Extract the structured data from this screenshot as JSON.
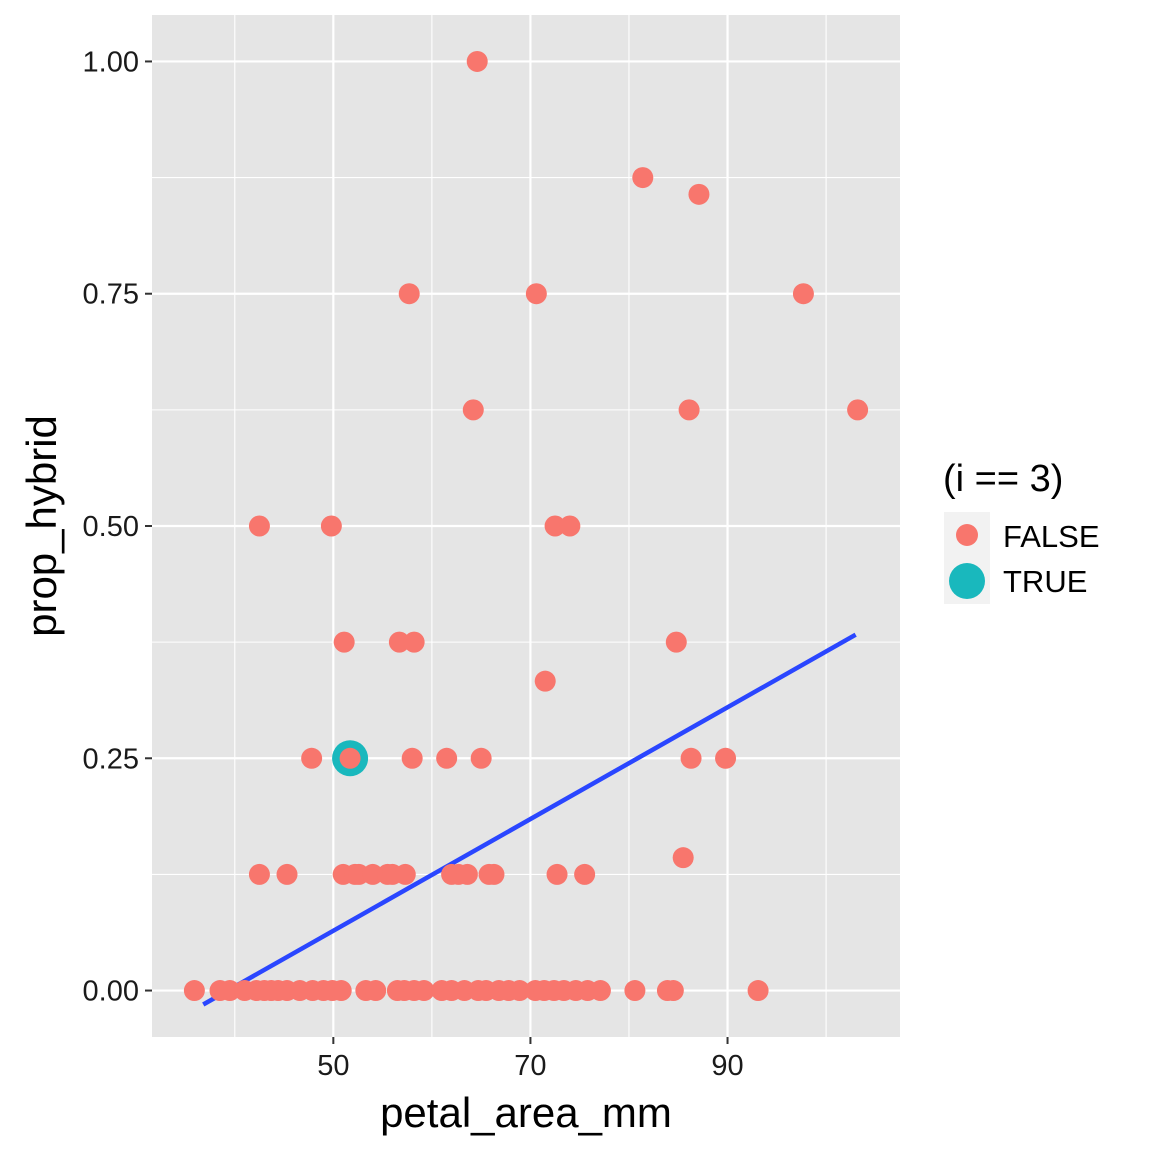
{
  "colors": {
    "panel_bg": "#e5e5e5",
    "grid_major": "#ffffff",
    "false_point": "#f8766d",
    "true_point": "#19b8bd",
    "fit_line": "#2a46ff",
    "tick_mark": "#333333"
  },
  "chart_data": {
    "type": "scatter",
    "xlabel": "petal_area_mm",
    "ylabel": "prop_hybrid",
    "xlim": [
      31.6,
      107.5
    ],
    "ylim": [
      -0.05,
      1.05
    ],
    "x_ticks": [
      {
        "value": 50,
        "label": "50"
      },
      {
        "value": 70,
        "label": "70"
      },
      {
        "value": 90,
        "label": "90"
      }
    ],
    "x_minor": [
      40,
      60,
      80,
      100
    ],
    "y_ticks": [
      {
        "value": 0,
        "label": "0.00"
      },
      {
        "value": 0.25,
        "label": "0.25"
      },
      {
        "value": 0.5,
        "label": "0.50"
      },
      {
        "value": 0.75,
        "label": "0.75"
      },
      {
        "value": 1.0,
        "label": "1.00"
      }
    ],
    "y_minor": [
      0.125,
      0.375,
      0.625,
      0.875
    ],
    "grid": true,
    "legend": {
      "title": "(i == 3)",
      "position": "right",
      "entries": [
        "FALSE",
        "TRUE"
      ]
    },
    "series": [
      {
        "name": "FALSE",
        "points": [
          [
            64.6,
            1.0
          ],
          [
            81.4,
            0.875
          ],
          [
            87.1,
            0.857
          ],
          [
            57.7,
            0.75
          ],
          [
            70.6,
            0.75
          ],
          [
            97.7,
            0.75
          ],
          [
            64.2,
            0.625
          ],
          [
            86.1,
            0.625
          ],
          [
            103.2,
            0.625
          ],
          [
            42.5,
            0.5
          ],
          [
            49.8,
            0.5
          ],
          [
            72.5,
            0.5
          ],
          [
            74.0,
            0.5
          ],
          [
            51.1,
            0.375
          ],
          [
            56.7,
            0.375
          ],
          [
            58.2,
            0.375
          ],
          [
            84.8,
            0.375
          ],
          [
            71.5,
            0.333
          ],
          [
            47.8,
            0.25
          ],
          [
            51.7,
            0.25
          ],
          [
            58.0,
            0.25
          ],
          [
            61.5,
            0.25
          ],
          [
            65.0,
            0.25
          ],
          [
            86.3,
            0.25
          ],
          [
            89.8,
            0.25
          ],
          [
            85.5,
            0.143
          ],
          [
            42.5,
            0.125
          ],
          [
            45.3,
            0.125
          ],
          [
            51.0,
            0.125
          ],
          [
            52.2,
            0.125
          ],
          [
            52.6,
            0.125
          ],
          [
            54.0,
            0.125
          ],
          [
            55.5,
            0.125
          ],
          [
            56.0,
            0.125
          ],
          [
            57.3,
            0.125
          ],
          [
            62.0,
            0.125
          ],
          [
            62.7,
            0.125
          ],
          [
            63.6,
            0.125
          ],
          [
            65.8,
            0.125
          ],
          [
            66.3,
            0.125
          ],
          [
            72.7,
            0.125
          ],
          [
            75.5,
            0.125
          ],
          [
            35.9,
            0
          ],
          [
            38.5,
            0
          ],
          [
            39.5,
            0
          ],
          [
            41.0,
            0
          ],
          [
            42.2,
            0
          ],
          [
            43.0,
            0
          ],
          [
            43.7,
            0
          ],
          [
            44.4,
            0
          ],
          [
            45.3,
            0
          ],
          [
            46.6,
            0
          ],
          [
            47.9,
            0
          ],
          [
            49.0,
            0
          ],
          [
            49.9,
            0
          ],
          [
            50.8,
            0
          ],
          [
            53.3,
            0
          ],
          [
            54.3,
            0
          ],
          [
            56.5,
            0
          ],
          [
            57.2,
            0
          ],
          [
            58.2,
            0
          ],
          [
            59.2,
            0
          ],
          [
            61.0,
            0
          ],
          [
            62.0,
            0
          ],
          [
            63.3,
            0
          ],
          [
            64.7,
            0
          ],
          [
            65.5,
            0
          ],
          [
            66.8,
            0
          ],
          [
            67.8,
            0
          ],
          [
            68.9,
            0
          ],
          [
            70.5,
            0
          ],
          [
            71.4,
            0
          ],
          [
            72.4,
            0
          ],
          [
            73.4,
            0
          ],
          [
            74.6,
            0
          ],
          [
            75.8,
            0
          ],
          [
            77.1,
            0
          ],
          [
            80.6,
            0
          ],
          [
            83.9,
            0
          ],
          [
            84.5,
            0
          ],
          [
            93.1,
            0
          ]
        ]
      },
      {
        "name": "TRUE",
        "points": [
          [
            51.7,
            0.25
          ]
        ]
      }
    ],
    "fit_line": {
      "x": [
        36.8,
        103.0
      ],
      "y": [
        -0.015,
        0.383
      ]
    }
  }
}
